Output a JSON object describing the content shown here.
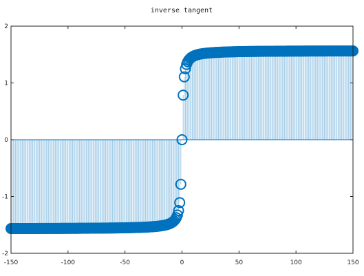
{
  "chart_data": {
    "type": "stem",
    "title": "inverse tangent",
    "xlabel": "",
    "ylabel": "",
    "xlim": [
      -150,
      150
    ],
    "ylim": [
      -2,
      2
    ],
    "x_ticks": [
      "-150",
      "-100",
      "-50",
      "0",
      "50",
      "100",
      "150"
    ],
    "y_ticks": [
      "2",
      "1",
      "0",
      "-1",
      "-2"
    ],
    "grid": false,
    "series": [
      {
        "function": "atan(x)",
        "x_range": [
          -150,
          150
        ],
        "x_step": 1,
        "marker": "open-circle",
        "color": "#0072bd",
        "stem_color": "#0072bd"
      }
    ]
  }
}
